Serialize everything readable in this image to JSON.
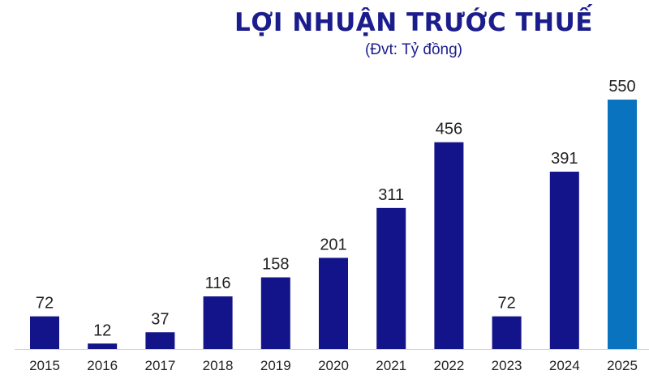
{
  "chart_data": {
    "type": "bar",
    "title": "LỢI NHUẬN TRƯỚC THUẾ",
    "subtitle": "(Đvt: Tỷ đồng)",
    "xlabel": "",
    "ylabel": "",
    "categories": [
      "2015",
      "2016",
      "2017",
      "2018",
      "2019",
      "2020",
      "2021",
      "2022",
      "2023",
      "2024",
      "2025"
    ],
    "values": [
      72,
      12,
      37,
      116,
      158,
      201,
      311,
      456,
      72,
      391,
      550
    ],
    "value_labels": [
      "72",
      "12",
      "37",
      "116",
      "158",
      "201",
      "311",
      "456",
      "72",
      "391",
      "550"
    ],
    "ylim": [
      0,
      550
    ],
    "grid": false,
    "legend": "none",
    "colors": {
      "bar": "#14148a",
      "highlight_bar": "#0a73bf",
      "highlight_category": "2025",
      "title": "#1c1d8c",
      "text": "#222222"
    }
  }
}
